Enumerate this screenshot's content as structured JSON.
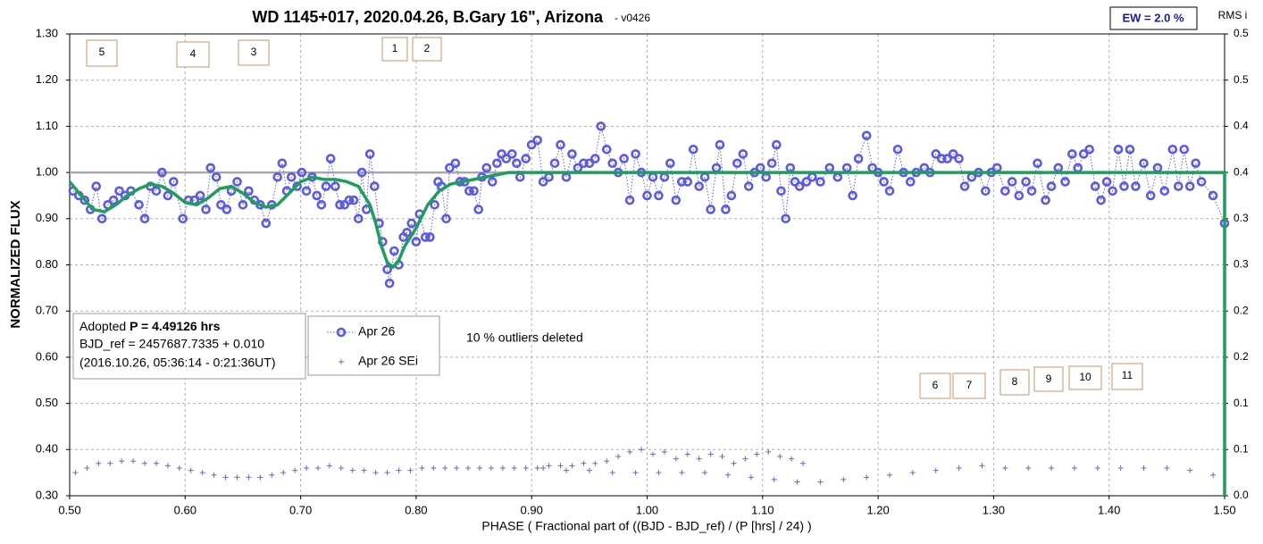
{
  "chart_data": {
    "type": "line",
    "title": "WD 1145+017, 2020.04.26, B.Gary 16\", Arizona",
    "subtitle": "-  v0426",
    "x_label": "PHASE ( Fractional part of ((BJD - BJD_ref) / (P [hrs] / 24) )",
    "y_label": "NORMALIZED FLUX",
    "y2_label": "RMS i",
    "ew_label": "EW = 2.0 %",
    "note": "10 % outliers deleted",
    "info": {
      "prefix": "Adopted ",
      "period": "P = 4.49126 hrs",
      "bjd": "BJD_ref = 2457687.7335 + 0.010",
      "date": "(2016.10.26, 05:36:14 - 0:21:36UT)"
    },
    "boxes": [
      "1",
      "2",
      "3",
      "4",
      "5",
      "6",
      "7",
      "8",
      "9",
      "10",
      "11"
    ],
    "xlim": [
      0.5,
      1.5
    ],
    "ylim": [
      0.3,
      1.3
    ],
    "y2lim": [
      0,
      0.5
    ],
    "grid": true,
    "reference_line": 1.0,
    "xticks": [
      {
        "value": 0.5,
        "label": "0.50"
      },
      {
        "value": 0.6,
        "label": "0.60"
      },
      {
        "value": 0.7,
        "label": "0.70"
      },
      {
        "value": 0.8,
        "label": "0.80"
      },
      {
        "value": 0.9,
        "label": "0.90"
      },
      {
        "value": 1.0,
        "label": "1.00"
      },
      {
        "value": 1.1,
        "label": "1.10"
      },
      {
        "value": 1.2,
        "label": "1.20"
      },
      {
        "value": 1.3,
        "label": "1.30"
      },
      {
        "value": 1.4,
        "label": "1.40"
      },
      {
        "value": 1.5,
        "label": "1.50"
      }
    ],
    "yticks": [
      {
        "value": 0.3,
        "label": "0.30"
      },
      {
        "value": 0.4,
        "label": "0.40"
      },
      {
        "value": 0.5,
        "label": "0.50"
      },
      {
        "value": 0.6,
        "label": "0.60"
      },
      {
        "value": 0.7,
        "label": "0.70"
      },
      {
        "value": 0.8,
        "label": "0.80"
      },
      {
        "value": 0.9,
        "label": "0.90"
      },
      {
        "value": 1.0,
        "label": "1.00"
      },
      {
        "value": 1.1,
        "label": "1.10"
      },
      {
        "value": 1.2,
        "label": "1.20"
      },
      {
        "value": 1.3,
        "label": "1.30"
      }
    ],
    "y2ticks": [
      {
        "value": 0,
        "label": "0.0"
      },
      {
        "value": 0.05,
        "label": "0.1"
      },
      0.1,
      {
        "value": 0.15,
        "label": "0.2"
      },
      0.2,
      {
        "value": 0.25,
        "label": "0.3"
      },
      0.3,
      {
        "value": 0.35,
        "label": "0.4"
      },
      0.4,
      {
        "value": 0.45,
        "label": "0.5"
      },
      0.5
    ],
    "series": [
      {
        "name": "Apr 26",
        "color": "#5a5ae6",
        "marker": "circle",
        "line": "dotted",
        "x": [
          0.503,
          0.508,
          0.513,
          0.518,
          0.523,
          0.528,
          0.533,
          0.538,
          0.543,
          0.548,
          0.553,
          0.56,
          0.565,
          0.57,
          0.575,
          0.58,
          0.585,
          0.59,
          0.598,
          0.603,
          0.608,
          0.613,
          0.618,
          0.622,
          0.627,
          0.631,
          0.636,
          0.64,
          0.645,
          0.65,
          0.655,
          0.66,
          0.665,
          0.67,
          0.675,
          0.68,
          0.684,
          0.688,
          0.692,
          0.697,
          0.701,
          0.705,
          0.71,
          0.714,
          0.718,
          0.722,
          0.726,
          0.73,
          0.734,
          0.738,
          0.742,
          0.746,
          0.75,
          0.753,
          0.757,
          0.76,
          0.764,
          0.768,
          0.771,
          0.775,
          0.777,
          0.781,
          0.785,
          0.789,
          0.792,
          0.796,
          0.8,
          0.803,
          0.808,
          0.812,
          0.816,
          0.819,
          0.822,
          0.826,
          0.829,
          0.834,
          0.838,
          0.842,
          0.846,
          0.85,
          0.854,
          0.857,
          0.861,
          0.866,
          0.87,
          0.874,
          0.878,
          0.883,
          0.887,
          0.89,
          0.895,
          0.9,
          0.905,
          0.91,
          0.915,
          0.92,
          0.925,
          0.93,
          0.935,
          0.94,
          0.945,
          0.95,
          0.955,
          0.96,
          0.965,
          0.97,
          0.975,
          0.98,
          0.985,
          0.99,
          0.995,
          1.0,
          1.005,
          1.01,
          1.015,
          1.02,
          1.025,
          1.03,
          1.035,
          1.04,
          1.045,
          1.05,
          1.055,
          1.06,
          1.063,
          1.068,
          1.073,
          1.078,
          1.083,
          1.088,
          1.093,
          1.098,
          1.103,
          1.108,
          1.112,
          1.116,
          1.12,
          1.124,
          1.128,
          1.132,
          1.138,
          1.143,
          1.15,
          1.158,
          1.165,
          1.173,
          1.178,
          1.183,
          1.19,
          1.195,
          1.2,
          1.205,
          1.21,
          1.217,
          1.222,
          1.228,
          1.233,
          1.24,
          1.245,
          1.25,
          1.255,
          1.26,
          1.265,
          1.27,
          1.275,
          1.281,
          1.287,
          1.293,
          1.298,
          1.303,
          1.31,
          1.316,
          1.322,
          1.328,
          1.333,
          1.338,
          1.345,
          1.35,
          1.356,
          1.362,
          1.368,
          1.373,
          1.378,
          1.383,
          1.388,
          1.393,
          1.398,
          1.403,
          1.408,
          1.413,
          1.418,
          1.423,
          1.43,
          1.436,
          1.442,
          1.448,
          1.455,
          1.46,
          1.465,
          1.47,
          1.475,
          1.48,
          1.49,
          1.5
        ],
        "values": [
          0.96,
          0.95,
          0.94,
          0.92,
          0.97,
          0.9,
          0.93,
          0.94,
          0.96,
          0.95,
          0.96,
          0.93,
          0.9,
          0.97,
          0.96,
          1.0,
          0.95,
          0.98,
          0.9,
          0.94,
          0.94,
          0.95,
          0.92,
          1.01,
          0.99,
          0.93,
          0.92,
          0.96,
          0.98,
          0.93,
          0.96,
          0.94,
          0.93,
          0.89,
          0.93,
          0.99,
          1.02,
          0.96,
          0.99,
          0.97,
          1.0,
          0.96,
          0.99,
          0.95,
          0.93,
          0.97,
          1.03,
          0.97,
          0.93,
          0.93,
          0.94,
          0.94,
          0.9,
          1.0,
          0.92,
          1.04,
          0.97,
          0.89,
          0.85,
          0.79,
          0.76,
          0.83,
          0.8,
          0.86,
          0.87,
          0.89,
          0.85,
          0.91,
          0.86,
          0.86,
          0.93,
          0.98,
          0.97,
          0.9,
          1.01,
          1.02,
          0.98,
          0.98,
          0.96,
          0.96,
          0.92,
          0.99,
          1.01,
          0.98,
          1.02,
          1.04,
          1.03,
          1.04,
          1.02,
          0.99,
          1.03,
          1.06,
          1.07,
          0.98,
          0.99,
          1.02,
          1.06,
          0.99,
          1.04,
          1.01,
          1.02,
          1.02,
          1.03,
          1.1,
          1.05,
          1.02,
          1.0,
          1.03,
          0.94,
          1.04,
          1.0,
          0.95,
          0.99,
          0.95,
          0.99,
          1.02,
          0.94,
          0.98,
          0.98,
          1.05,
          0.97,
          0.99,
          0.92,
          1.01,
          1.06,
          0.92,
          0.95,
          1.02,
          1.04,
          0.97,
          1.0,
          1.01,
          0.99,
          1.02,
          1.06,
          0.96,
          0.9,
          1.01,
          0.98,
          0.97,
          0.98,
          0.99,
          0.98,
          1.01,
          0.99,
          1.01,
          0.95,
          1.03,
          1.08,
          1.01,
          1.0,
          0.98,
          0.96,
          1.05,
          1.0,
          0.98,
          1.0,
          1.01,
          1.0,
          1.04,
          1.03,
          1.03,
          1.04,
          1.03,
          0.97,
          0.99,
          1.0,
          0.96,
          1.0,
          1.01,
          0.96,
          0.98,
          0.95,
          0.98,
          0.96,
          1.02,
          0.94,
          0.97,
          1.01,
          0.98,
          1.04,
          1.01,
          1.04,
          1.05,
          0.97,
          0.94,
          0.98,
          0.96,
          1.05,
          0.97,
          1.05,
          0.97,
          1.02,
          0.95,
          1.01,
          0.96,
          1.05,
          0.97,
          1.05,
          0.97,
          1.02,
          0.98,
          0.95,
          0.89
        ]
      },
      {
        "name": "Apr 26 SEi",
        "color": "#6a6ab8",
        "marker": "plus",
        "line": "none",
        "x": [
          0.505,
          0.515,
          0.525,
          0.535,
          0.545,
          0.555,
          0.565,
          0.575,
          0.585,
          0.595,
          0.605,
          0.615,
          0.625,
          0.635,
          0.645,
          0.655,
          0.665,
          0.675,
          0.685,
          0.695,
          0.705,
          0.715,
          0.725,
          0.735,
          0.745,
          0.755,
          0.765,
          0.775,
          0.785,
          0.795,
          0.805,
          0.815,
          0.825,
          0.835,
          0.845,
          0.855,
          0.865,
          0.875,
          0.885,
          0.895,
          0.905,
          0.915,
          0.925,
          0.935,
          0.945,
          0.955,
          0.965,
          0.975,
          0.985,
          0.995,
          1.005,
          1.015,
          1.025,
          1.035,
          1.045,
          1.055,
          1.065,
          1.075,
          1.085,
          1.095,
          1.105,
          1.115,
          1.125,
          1.135,
          0.91,
          0.93,
          0.95,
          0.97,
          0.99,
          1.01,
          1.03,
          1.05,
          1.07,
          1.09,
          1.11,
          1.13,
          1.15,
          1.17,
          1.19,
          1.21,
          1.23,
          1.25,
          1.27,
          1.29,
          1.31,
          1.33,
          1.35,
          1.37,
          1.39,
          1.41,
          1.43,
          1.45,
          1.47,
          1.49
        ],
        "values": [
          0.35,
          0.36,
          0.37,
          0.37,
          0.375,
          0.375,
          0.37,
          0.37,
          0.365,
          0.36,
          0.355,
          0.35,
          0.345,
          0.34,
          0.34,
          0.34,
          0.34,
          0.345,
          0.35,
          0.355,
          0.36,
          0.36,
          0.365,
          0.36,
          0.355,
          0.355,
          0.35,
          0.35,
          0.355,
          0.355,
          0.36,
          0.36,
          0.36,
          0.36,
          0.36,
          0.36,
          0.36,
          0.36,
          0.36,
          0.36,
          0.36,
          0.365,
          0.365,
          0.365,
          0.37,
          0.37,
          0.375,
          0.385,
          0.395,
          0.4,
          0.39,
          0.395,
          0.38,
          0.39,
          0.38,
          0.39,
          0.385,
          0.37,
          0.38,
          0.39,
          0.395,
          0.385,
          0.38,
          0.37,
          0.36,
          0.355,
          0.355,
          0.35,
          0.35,
          0.35,
          0.35,
          0.35,
          0.345,
          0.34,
          0.335,
          0.33,
          0.33,
          0.335,
          0.34,
          0.345,
          0.35,
          0.355,
          0.36,
          0.365,
          0.36,
          0.36,
          0.36,
          0.36,
          0.36,
          0.36,
          0.36,
          0.36,
          0.355,
          0.345
        ]
      },
      {
        "color": "#1e9e5a",
        "marker": "none",
        "line": "solid",
        "x": [
          0.5,
          0.51,
          0.52,
          0.53,
          0.54,
          0.55,
          0.56,
          0.57,
          0.58,
          0.59,
          0.6,
          0.61,
          0.62,
          0.63,
          0.64,
          0.65,
          0.66,
          0.67,
          0.68,
          0.69,
          0.7,
          0.71,
          0.72,
          0.73,
          0.74,
          0.75,
          0.76,
          0.765,
          0.77,
          0.775,
          0.78,
          0.785,
          0.79,
          0.8,
          0.81,
          0.82,
          0.83,
          0.84,
          0.85,
          0.86,
          0.87,
          0.88,
          1.5,
          1.5
        ],
        "values": [
          0.98,
          0.95,
          0.92,
          0.915,
          0.93,
          0.95,
          0.965,
          0.975,
          0.97,
          0.955,
          0.935,
          0.93,
          0.945,
          0.965,
          0.97,
          0.955,
          0.935,
          0.925,
          0.93,
          0.955,
          0.98,
          0.99,
          0.985,
          0.985,
          0.98,
          0.97,
          0.93,
          0.89,
          0.84,
          0.805,
          0.795,
          0.81,
          0.84,
          0.88,
          0.93,
          0.96,
          0.975,
          0.98,
          0.985,
          0.99,
          0.995,
          1.0,
          1.0,
          0.3
        ]
      }
    ]
  }
}
